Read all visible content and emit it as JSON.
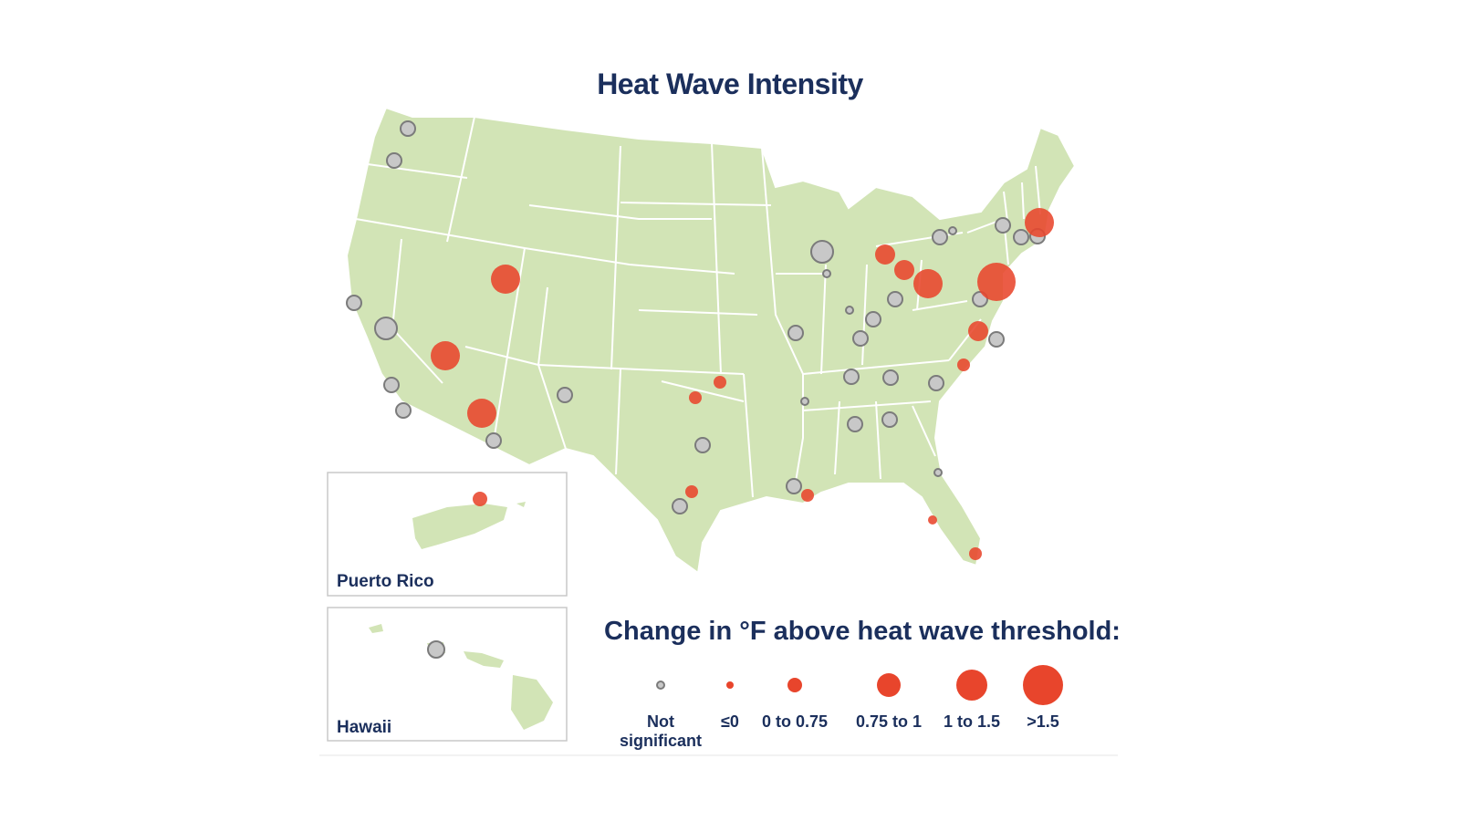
{
  "title": "Heat Wave Intensity",
  "insets": {
    "puerto_rico": "Puerto Rico",
    "hawaii": "Hawaii"
  },
  "legend": {
    "title": "Change in °F above heat wave threshold:",
    "items": [
      {
        "key": "ns",
        "line1": "Not",
        "line2": "significant"
      },
      {
        "key": "le0",
        "line1": "≤0",
        "line2": ""
      },
      {
        "key": "c1",
        "line1": "0 to 0.75",
        "line2": ""
      },
      {
        "key": "c2",
        "line1": "0.75 to 1",
        "line2": ""
      },
      {
        "key": "c3",
        "line1": "1 to 1.5",
        "line2": ""
      },
      {
        "key": "c4",
        "line1": ">1.5",
        "line2": ""
      }
    ]
  },
  "colors": {
    "land": "#d2e4b6",
    "state_border": "#ffffff",
    "not_significant": "#c8c8c8",
    "increase": "#e8452c",
    "text": "#1b2f5c"
  }
}
